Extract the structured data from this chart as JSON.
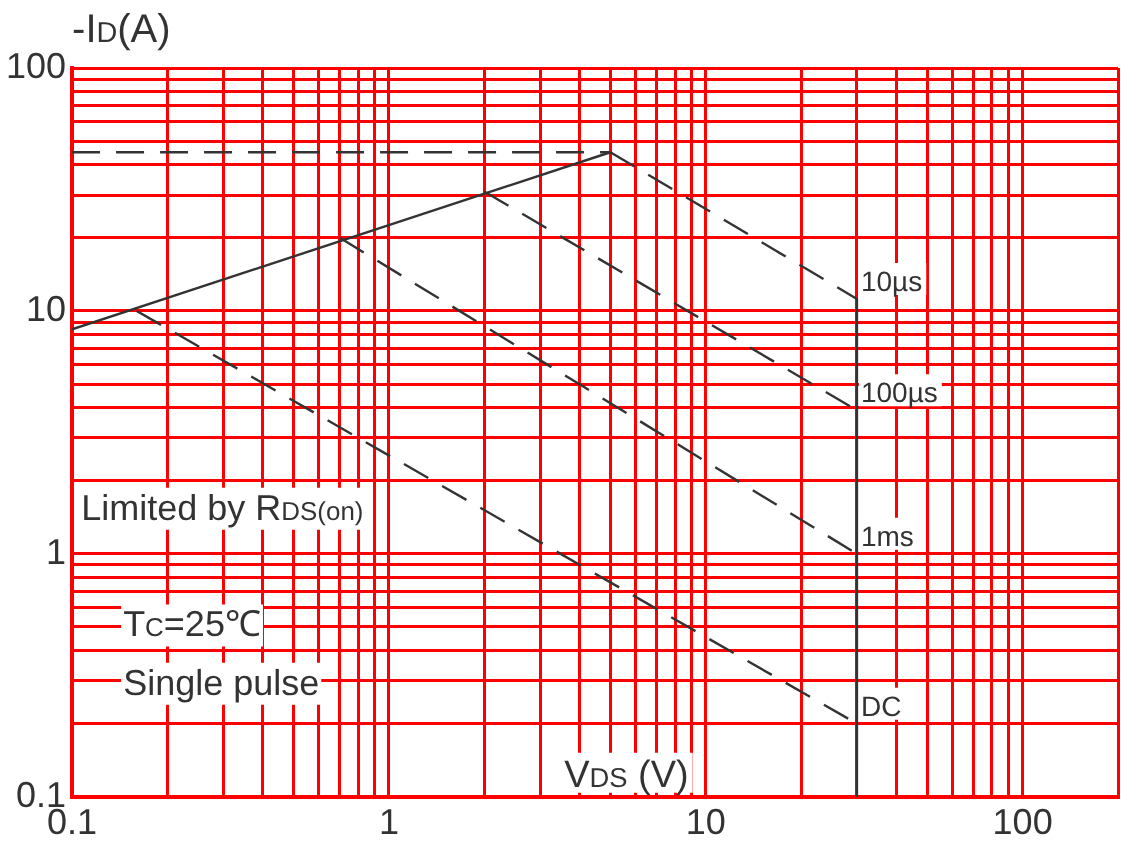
{
  "chart_data": {
    "type": "line",
    "xlabel": "V$_{DS}$ (V)",
    "ylabel": "-I$_{D}$(A)",
    "log": "xy",
    "grid": true,
    "legend": false,
    "marker": "none",
    "xlim": [
      0.1,
      200
    ],
    "ylim": [
      0.1,
      100
    ],
    "xticks": [
      0.1,
      {
        "value": 0.2,
        "label": null
      },
      {
        "value": 0.3,
        "label": null
      },
      {
        "value": 0.4,
        "label": null
      },
      {
        "value": 0.5,
        "label": null
      },
      {
        "value": 0.6,
        "label": null
      },
      {
        "value": 0.7,
        "label": null
      },
      {
        "value": 0.8,
        "label": null
      },
      {
        "value": 0.9,
        "label": null
      },
      1,
      {
        "value": 2,
        "label": null
      },
      {
        "value": 3,
        "label": null
      },
      {
        "value": 4,
        "label": null
      },
      {
        "value": 5,
        "label": null
      },
      {
        "value": 6,
        "label": null
      },
      {
        "value": 7,
        "label": null
      },
      {
        "value": 8,
        "label": null
      },
      {
        "value": 9,
        "label": null
      },
      10,
      {
        "value": 20,
        "label": null
      },
      {
        "value": 30,
        "label": null
      },
      {
        "value": 40,
        "label": null
      },
      {
        "value": 50,
        "label": null
      },
      {
        "value": 60,
        "label": null
      },
      {
        "value": 70,
        "label": null
      },
      {
        "value": 80,
        "label": null
      },
      {
        "value": 90,
        "label": null
      },
      100,
      {
        "value": 200,
        "label": null
      }
    ],
    "yticks": [
      0.1,
      {
        "value": 0.2,
        "label": null
      },
      {
        "value": 0.3,
        "label": null
      },
      {
        "value": 0.4,
        "label": null
      },
      {
        "value": 0.5,
        "label": null
      },
      {
        "value": 0.6,
        "label": null
      },
      {
        "value": 0.7,
        "label": null
      },
      {
        "value": 0.8,
        "label": null
      },
      {
        "value": 0.9,
        "label": null
      },
      1,
      {
        "value": 2,
        "label": null
      },
      {
        "value": 3,
        "label": null
      },
      {
        "value": 4,
        "label": null
      },
      {
        "value": 5,
        "label": null
      },
      {
        "value": 6,
        "label": null
      },
      {
        "value": 7,
        "label": null
      },
      {
        "value": 8,
        "label": null
      },
      {
        "value": 9,
        "label": null
      },
      10,
      {
        "value": 20,
        "label": null
      },
      {
        "value": 30,
        "label": null
      },
      {
        "value": 40,
        "label": null
      },
      {
        "value": 50,
        "label": null
      },
      {
        "value": 60,
        "label": null
      },
      {
        "value": 70,
        "label": null
      },
      {
        "value": 80,
        "label": null
      },
      {
        "value": 90,
        "label": null
      },
      100
    ],
    "annotations": [
      "Limited by R$_{DS(on)}$",
      "T$_{C}$=25℃",
      "Single pulse"
    ],
    "series": [
      {
        "color": "#333333",
        "line_style": "solid",
        "x": [
          0.1,
          5
        ],
        "values": [
          8.4,
          45
        ]
      },
      {
        "color": "#333333",
        "line_style": "dashed",
        "x": [
          0.1,
          5
        ],
        "values": [
          45,
          45
        ]
      },
      {
        "name": "10µs",
        "color": "#333333",
        "line_style": "dashed",
        "x": [
          5,
          30
        ],
        "values": [
          45,
          11.2
        ]
      },
      {
        "name": "100µs",
        "color": "#333333",
        "line_style": "dashed",
        "x": [
          2,
          30
        ],
        "values": [
          31,
          3.9
        ]
      },
      {
        "name": "1ms",
        "color": "#333333",
        "line_style": "dashed",
        "x": [
          0.7,
          30
        ],
        "values": [
          20,
          1.0
        ]
      },
      {
        "name": "DC",
        "color": "#333333",
        "line_style": "dashed",
        "x": [
          0.16,
          30
        ],
        "values": [
          10,
          0.2
        ]
      },
      {
        "color": "#333333",
        "line_style": "solid",
        "x": [
          30,
          30
        ],
        "values": [
          11.2,
          0.1
        ]
      }
    ]
  }
}
